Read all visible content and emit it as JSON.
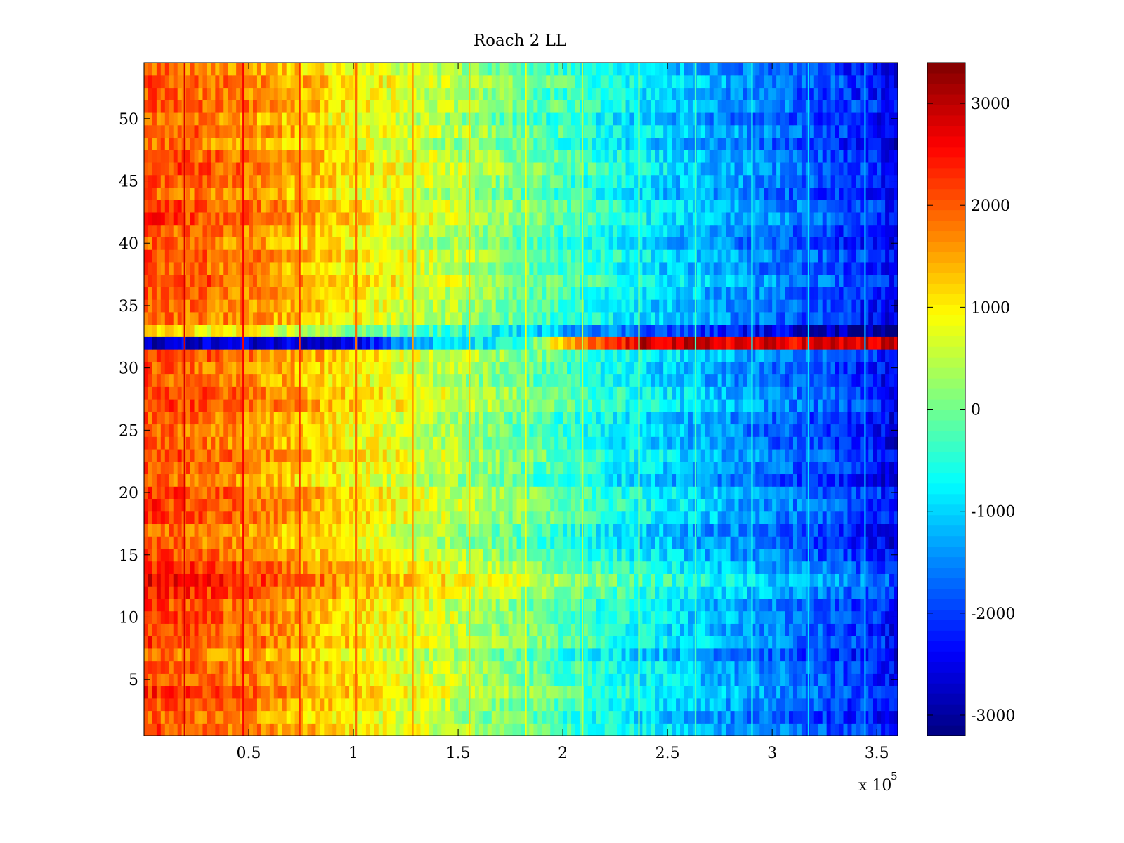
{
  "chart_data": {
    "type": "heatmap",
    "title": "Roach 2 LL",
    "xlabel": "",
    "ylabel": "",
    "x_range": [
      0,
      360000
    ],
    "y_range": [
      0.5,
      54.5
    ],
    "rows": 54,
    "x_ticks": [
      50000,
      100000,
      150000,
      200000,
      250000,
      300000,
      350000
    ],
    "x_tick_labels": [
      "0.5",
      "1",
      "1.5",
      "2",
      "2.5",
      "3",
      "3.5"
    ],
    "x_multiplier_base": "x 10",
    "x_multiplier_exp": "5",
    "y_ticks": [
      5,
      10,
      15,
      20,
      25,
      30,
      35,
      40,
      45,
      50
    ],
    "y_tick_labels": [
      "5",
      "10",
      "15",
      "20",
      "25",
      "30",
      "35",
      "40",
      "45",
      "50"
    ],
    "colorbar": {
      "range": [
        -3200,
        3400
      ],
      "ticks": [
        -3000,
        -2000,
        -1000,
        0,
        1000,
        2000,
        3000
      ],
      "tick_labels": [
        "-3000",
        "-2000",
        "-1000",
        "0",
        "1000",
        "2000",
        "3000"
      ],
      "colormap": "jet"
    },
    "trend": {
      "description_points_x": [
        0,
        50000,
        100000,
        150000,
        200000,
        250000,
        300000,
        350000,
        360000
      ],
      "values": [
        2100,
        1700,
        1000,
        400,
        -300,
        -1000,
        -1600,
        -2200,
        -2600
      ]
    },
    "anomalous_row": {
      "row": 32,
      "x": [
        0,
        100000,
        130000,
        180000,
        200000,
        240000,
        300000,
        360000
      ],
      "values": [
        -2700,
        -2500,
        -1200,
        -600,
        1200,
        2900,
        2700,
        2800
      ]
    },
    "bright_vertical_lines_x": [
      19000,
      47000,
      74000,
      101000,
      128000,
      155000,
      182000,
      209000,
      236000,
      263000,
      290000,
      317000,
      344000
    ]
  }
}
